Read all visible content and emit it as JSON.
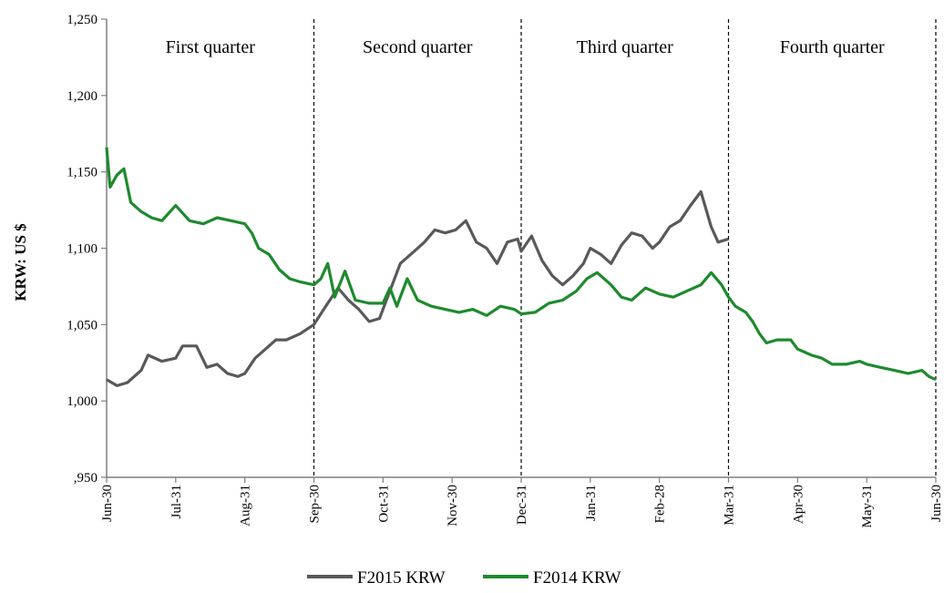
{
  "chart_data": {
    "type": "line",
    "title": "",
    "xlabel": "",
    "ylabel": "KRW: US $",
    "ylim": [
      950,
      1250
    ],
    "yticks": [
      950,
      1000,
      1050,
      1100,
      1150,
      1200,
      1250
    ],
    "ytick_labels": [
      ",950",
      "1,000",
      "1,050",
      "1,100",
      "1,150",
      "1,200",
      "1,250"
    ],
    "x_categories": [
      "Jun-30",
      "Jul-31",
      "Aug-31",
      "Sep-30",
      "Oct-31",
      "Nov-30",
      "Dec-31",
      "Jan-31",
      "Feb-28",
      "Mar-31",
      "Apr-30",
      "May-31",
      "Jun-30"
    ],
    "quarter_dividers": [
      "Sep-30",
      "Dec-31",
      "Mar-31",
      "Jun-30"
    ],
    "quarters": [
      {
        "label": "First quarter",
        "from": "Jun-30",
        "to": "Sep-30"
      },
      {
        "label": "Second quarter",
        "from": "Sep-30",
        "to": "Dec-31"
      },
      {
        "label": "Third quarter",
        "from": "Dec-31",
        "to": "Mar-31"
      },
      {
        "label": "Fourth quarter",
        "from": "Mar-31",
        "to": "Jun-30"
      }
    ],
    "grid": false,
    "legend": "bottom",
    "series": [
      {
        "name": "F2015 KRW",
        "color": "#595959",
        "points": [
          [
            0,
            1014
          ],
          [
            0.15,
            1010
          ],
          [
            0.3,
            1012
          ],
          [
            0.5,
            1020
          ],
          [
            0.6,
            1030
          ],
          [
            0.8,
            1026
          ],
          [
            1.0,
            1028
          ],
          [
            1.1,
            1036
          ],
          [
            1.3,
            1036
          ],
          [
            1.45,
            1022
          ],
          [
            1.6,
            1024
          ],
          [
            1.75,
            1018
          ],
          [
            1.9,
            1016
          ],
          [
            2.0,
            1018
          ],
          [
            2.15,
            1028
          ],
          [
            2.3,
            1034
          ],
          [
            2.45,
            1040
          ],
          [
            2.6,
            1040
          ],
          [
            2.8,
            1044
          ],
          [
            3.0,
            1050
          ],
          [
            3.2,
            1064
          ],
          [
            3.35,
            1074
          ],
          [
            3.5,
            1066
          ],
          [
            3.65,
            1060
          ],
          [
            3.8,
            1052
          ],
          [
            3.95,
            1054
          ],
          [
            4.1,
            1072
          ],
          [
            4.25,
            1090
          ],
          [
            4.45,
            1098
          ],
          [
            4.6,
            1104
          ],
          [
            4.75,
            1112
          ],
          [
            4.9,
            1110
          ],
          [
            5.05,
            1112
          ],
          [
            5.2,
            1118
          ],
          [
            5.35,
            1104
          ],
          [
            5.5,
            1100
          ],
          [
            5.65,
            1090
          ],
          [
            5.8,
            1104
          ],
          [
            5.95,
            1106
          ],
          [
            6.0,
            1098
          ],
          [
            6.15,
            1108
          ],
          [
            6.3,
            1092
          ],
          [
            6.45,
            1082
          ],
          [
            6.6,
            1076
          ],
          [
            6.75,
            1082
          ],
          [
            6.9,
            1090
          ],
          [
            7.0,
            1100
          ],
          [
            7.15,
            1096
          ],
          [
            7.3,
            1090
          ],
          [
            7.45,
            1102
          ],
          [
            7.6,
            1110
          ],
          [
            7.75,
            1108
          ],
          [
            7.9,
            1100
          ],
          [
            8.0,
            1104
          ],
          [
            8.15,
            1114
          ],
          [
            8.3,
            1118
          ],
          [
            8.45,
            1128
          ],
          [
            8.6,
            1137
          ],
          [
            8.75,
            1114
          ],
          [
            8.85,
            1104
          ],
          [
            9.0,
            1106
          ]
        ]
      },
      {
        "name": "F2014 KRW",
        "color": "#1e8a2e",
        "points": [
          [
            0,
            1166
          ],
          [
            0.05,
            1140
          ],
          [
            0.15,
            1148
          ],
          [
            0.25,
            1152
          ],
          [
            0.35,
            1130
          ],
          [
            0.5,
            1124
          ],
          [
            0.65,
            1120
          ],
          [
            0.8,
            1118
          ],
          [
            1.0,
            1128
          ],
          [
            1.2,
            1118
          ],
          [
            1.4,
            1116
          ],
          [
            1.6,
            1120
          ],
          [
            1.8,
            1118
          ],
          [
            2.0,
            1116
          ],
          [
            2.1,
            1110
          ],
          [
            2.2,
            1100
          ],
          [
            2.35,
            1096
          ],
          [
            2.5,
            1086
          ],
          [
            2.65,
            1080
          ],
          [
            2.8,
            1078
          ],
          [
            3.0,
            1076
          ],
          [
            3.1,
            1080
          ],
          [
            3.2,
            1090
          ],
          [
            3.3,
            1068
          ],
          [
            3.45,
            1085
          ],
          [
            3.6,
            1066
          ],
          [
            3.8,
            1064
          ],
          [
            4.0,
            1064
          ],
          [
            4.1,
            1074
          ],
          [
            4.2,
            1062
          ],
          [
            4.35,
            1080
          ],
          [
            4.5,
            1066
          ],
          [
            4.7,
            1062
          ],
          [
            4.9,
            1060
          ],
          [
            5.1,
            1058
          ],
          [
            5.3,
            1060
          ],
          [
            5.5,
            1056
          ],
          [
            5.7,
            1062
          ],
          [
            5.9,
            1060
          ],
          [
            6.0,
            1057
          ],
          [
            6.2,
            1058
          ],
          [
            6.4,
            1064
          ],
          [
            6.6,
            1066
          ],
          [
            6.8,
            1072
          ],
          [
            6.95,
            1080
          ],
          [
            7.1,
            1084
          ],
          [
            7.3,
            1076
          ],
          [
            7.45,
            1068
          ],
          [
            7.6,
            1066
          ],
          [
            7.8,
            1074
          ],
          [
            8.0,
            1070
          ],
          [
            8.2,
            1068
          ],
          [
            8.4,
            1072
          ],
          [
            8.6,
            1076
          ],
          [
            8.75,
            1084
          ],
          [
            8.9,
            1076
          ],
          [
            9.0,
            1068
          ],
          [
            9.1,
            1062
          ],
          [
            9.25,
            1058
          ],
          [
            9.35,
            1052
          ],
          [
            9.45,
            1044
          ],
          [
            9.55,
            1038
          ],
          [
            9.7,
            1040
          ],
          [
            9.9,
            1040
          ],
          [
            10.0,
            1034
          ],
          [
            10.2,
            1030
          ],
          [
            10.35,
            1028
          ],
          [
            10.5,
            1024
          ],
          [
            10.7,
            1024
          ],
          [
            10.9,
            1026
          ],
          [
            11.0,
            1024
          ],
          [
            11.2,
            1022
          ],
          [
            11.4,
            1020
          ],
          [
            11.6,
            1018
          ],
          [
            11.8,
            1020
          ],
          [
            11.9,
            1016
          ],
          [
            12.0,
            1014
          ]
        ]
      }
    ]
  }
}
